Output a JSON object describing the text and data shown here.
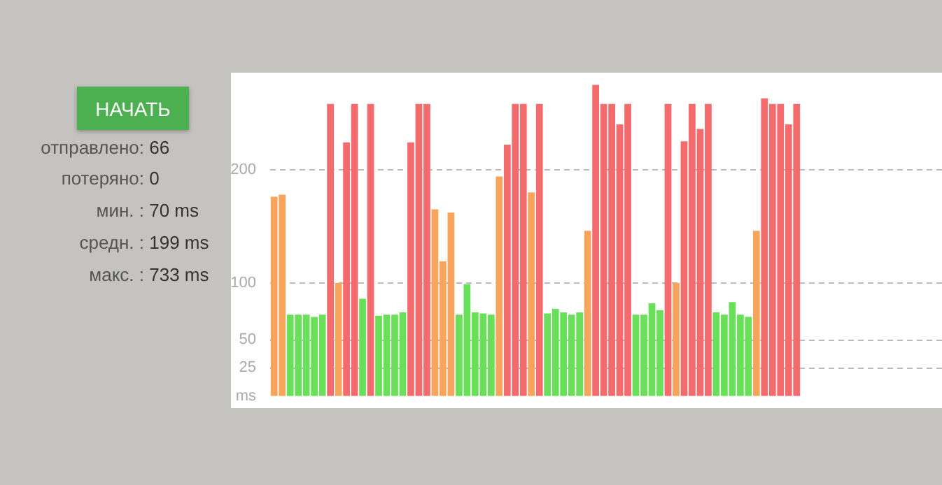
{
  "chart_data": {
    "type": "bar",
    "annotations": [
      "НАЧАТЬ",
      "отправлено: 66",
      "потеряно: 0",
      "мин. : 70 ms",
      "средн. : 199 ms",
      "макс. : 733 ms"
    ],
    "categories": [
      null,
      null,
      null,
      null,
      null,
      null,
      null,
      null,
      null,
      null,
      null,
      null,
      null,
      null,
      null,
      null,
      null,
      null,
      null,
      null,
      null,
      null,
      null,
      null,
      null,
      null,
      null,
      null,
      null,
      null,
      null,
      null,
      null,
      null,
      null,
      null,
      null,
      null,
      null,
      null,
      null,
      null,
      null,
      null,
      null,
      null,
      null,
      null,
      null,
      null,
      null,
      null,
      null,
      null,
      null,
      null,
      null,
      null,
      null,
      null,
      null,
      null,
      null,
      null,
      null,
      null
    ],
    "values": [
      176,
      178,
      72,
      72,
      72,
      70,
      72,
      258,
      100,
      224,
      258,
      86,
      258,
      71,
      72,
      72,
      74,
      224,
      258,
      258,
      165,
      119,
      162,
      72,
      99,
      74,
      73,
      72,
      194,
      222,
      258,
      258,
      180,
      258,
      73,
      77,
      74,
      72,
      74,
      146,
      275,
      258,
      258,
      240,
      258,
      72,
      72,
      82,
      76,
      258,
      100,
      225,
      258,
      236,
      258,
      74,
      72,
      83,
      72,
      70,
      146,
      263,
      258,
      258,
      240,
      258
    ],
    "colors": [
      "#f7a55c",
      "#f7a55c",
      "#6ae05a",
      "#6ae05a",
      "#6ae05a",
      "#6ae05a",
      "#6ae05a",
      "#f46b6e",
      "#f7a55c",
      "#f46b6e",
      "#f46b6e",
      "#6ae05a",
      "#f46b6e",
      "#6ae05a",
      "#6ae05a",
      "#6ae05a",
      "#6ae05a",
      "#f46b6e",
      "#f46b6e",
      "#f46b6e",
      "#f7a55c",
      "#f7a55c",
      "#f7a55c",
      "#6ae05a",
      "#6ae05a",
      "#6ae05a",
      "#6ae05a",
      "#6ae05a",
      "#f7a55c",
      "#f46b6e",
      "#f46b6e",
      "#f46b6e",
      "#f7a55c",
      "#f46b6e",
      "#6ae05a",
      "#6ae05a",
      "#6ae05a",
      "#6ae05a",
      "#6ae05a",
      "#f7a55c",
      "#f46b6e",
      "#f46b6e",
      "#f46b6e",
      "#f46b6e",
      "#f46b6e",
      "#6ae05a",
      "#6ae05a",
      "#6ae05a",
      "#6ae05a",
      "#f46b6e",
      "#f7a55c",
      "#f46b6e",
      "#f46b6e",
      "#f46b6e",
      "#f46b6e",
      "#6ae05a",
      "#6ae05a",
      "#6ae05a",
      "#6ae05a",
      "#6ae05a",
      "#f7a55c",
      "#f46b6e",
      "#f46b6e",
      "#f46b6e",
      "#f46b6e",
      "#f46b6e"
    ],
    "ylim": [
      0,
      275
    ],
    "yticks": [
      {
        "value": 0,
        "label": "ms"
      },
      25,
      50,
      100,
      200
    ],
    "grid": "y"
  }
}
